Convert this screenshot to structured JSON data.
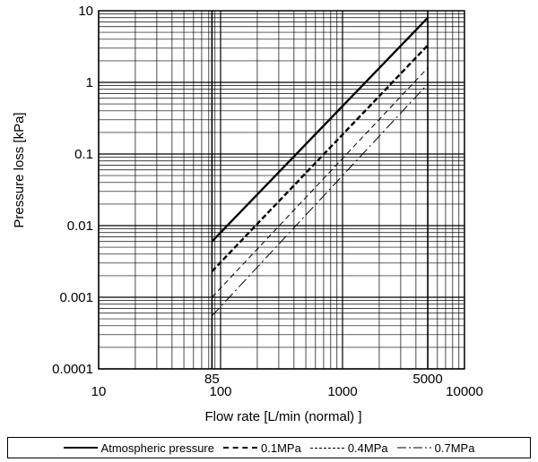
{
  "chart_data": {
    "type": "line",
    "xlabel": "Flow rate [L/min (normal) ]",
    "ylabel": "Pressure loss [kPa]",
    "xscale": "log",
    "yscale": "log",
    "xlim": [
      10,
      10000
    ],
    "ylim": [
      0.0001,
      10
    ],
    "x_ticks": [
      "10",
      "100",
      "1000",
      "10000"
    ],
    "y_ticks": [
      "10",
      "1",
      "0.1",
      "0.01",
      "0.001",
      "0.0001"
    ],
    "annotations": [
      "85",
      "5000"
    ],
    "grid": true,
    "legend_position": "bottom",
    "series": [
      {
        "name": "Atmospheric pressure",
        "style": "solid",
        "x": [
          85,
          5000
        ],
        "y": [
          0.006,
          8
        ]
      },
      {
        "name": "0.1MPa",
        "style": "dashed-bold",
        "x": [
          85,
          5000
        ],
        "y": [
          0.0023,
          3.3
        ]
      },
      {
        "name": "0.4MPa",
        "style": "dashed-thin",
        "x": [
          85,
          5000
        ],
        "y": [
          0.001,
          1.6
        ]
      },
      {
        "name": "0.7MPa",
        "style": "dash-dot",
        "x": [
          85,
          5000
        ],
        "y": [
          0.00055,
          0.95
        ]
      }
    ]
  }
}
